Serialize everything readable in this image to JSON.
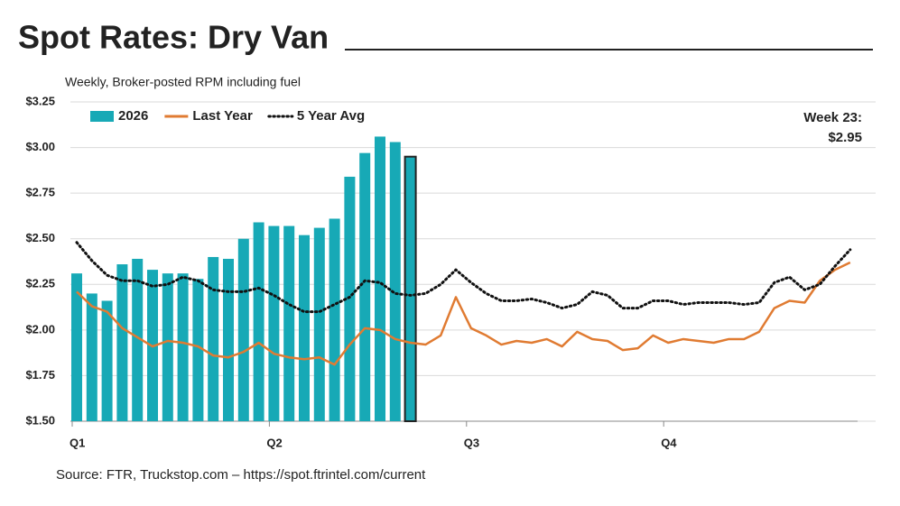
{
  "chart_data": {
    "type": "bar_line",
    "title": "Spot Rates: Dry Van",
    "subtitle": "Weekly, Broker-posted RPM including fuel",
    "source": "Source: FTR, Truckstop.com – https://spot.ftrintel.com/current",
    "annotation": [
      "Week 23:",
      "$2.95"
    ],
    "categories": [
      "Q1",
      null,
      null,
      null,
      null,
      null,
      null,
      null,
      null,
      null,
      null,
      null,
      null,
      "Q2",
      null,
      null,
      null,
      null,
      null,
      null,
      null,
      null,
      null,
      null,
      null,
      null,
      "Q3",
      null,
      null,
      null,
      null,
      null,
      null,
      null,
      null,
      null,
      null,
      null,
      null,
      "Q4",
      null,
      null,
      null,
      null,
      null,
      null,
      null,
      null,
      null,
      null,
      null,
      null
    ],
    "series": [
      {
        "name": "2026",
        "type": "bar",
        "color": "#17a9b6",
        "values": [
          2.31,
          2.2,
          2.16,
          2.36,
          2.39,
          2.33,
          2.31,
          2.31,
          2.28,
          2.4,
          2.39,
          2.5,
          2.59,
          2.57,
          2.57,
          2.52,
          2.56,
          2.61,
          2.84,
          2.97,
          3.06,
          3.03,
          2.95,
          null,
          null,
          null,
          null,
          null,
          null,
          null,
          null,
          null,
          null,
          null,
          null,
          null,
          null,
          null,
          null,
          null,
          null,
          null,
          null,
          null,
          null,
          null,
          null,
          null,
          null,
          null,
          null,
          null
        ]
      },
      {
        "name": "Last Year",
        "type": "line",
        "color": "#e07b32",
        "values": [
          2.21,
          2.13,
          2.1,
          2.01,
          1.96,
          1.91,
          1.94,
          1.93,
          1.91,
          1.86,
          1.85,
          1.88,
          1.93,
          1.87,
          1.85,
          1.84,
          1.85,
          1.81,
          1.92,
          2.01,
          2.0,
          1.95,
          1.93,
          1.92,
          1.97,
          2.18,
          2.01,
          1.97,
          1.92,
          1.94,
          1.93,
          1.95,
          1.91,
          1.99,
          1.95,
          1.94,
          1.89,
          1.9,
          1.97,
          1.93,
          1.95,
          1.94,
          1.93,
          1.95,
          1.95,
          1.99,
          2.12,
          2.16,
          2.15,
          2.27,
          2.33,
          2.37
        ]
      },
      {
        "name": "5 Year Avg",
        "type": "dotted",
        "color": "#111111",
        "values": [
          2.48,
          2.38,
          2.3,
          2.27,
          2.27,
          2.24,
          2.25,
          2.29,
          2.27,
          2.22,
          2.21,
          2.21,
          2.23,
          2.19,
          2.14,
          2.1,
          2.1,
          2.14,
          2.18,
          2.27,
          2.26,
          2.2,
          2.19,
          2.2,
          2.25,
          2.33,
          2.26,
          2.2,
          2.16,
          2.16,
          2.17,
          2.15,
          2.12,
          2.14,
          2.21,
          2.19,
          2.12,
          2.12,
          2.16,
          2.16,
          2.14,
          2.15,
          2.15,
          2.15,
          2.14,
          2.15,
          2.26,
          2.29,
          2.22,
          2.25,
          2.35,
          2.44
        ]
      }
    ],
    "ylim": [
      1.5,
      3.25
    ],
    "yticks": [
      {
        "value": 1.5,
        "label": "$1.50"
      },
      {
        "value": 1.75,
        "label": "$1.75"
      },
      {
        "value": 2.0,
        "label": "$2.00"
      },
      {
        "value": 2.25,
        "label": "$2.25"
      },
      {
        "value": 2.5,
        "label": "$2.50"
      },
      {
        "value": 2.75,
        "label": "$2.75"
      },
      {
        "value": 3.0,
        "label": "$3.00"
      },
      {
        "value": 3.25,
        "label": "$3.25"
      }
    ],
    "grid": true,
    "legend": "upper left"
  }
}
